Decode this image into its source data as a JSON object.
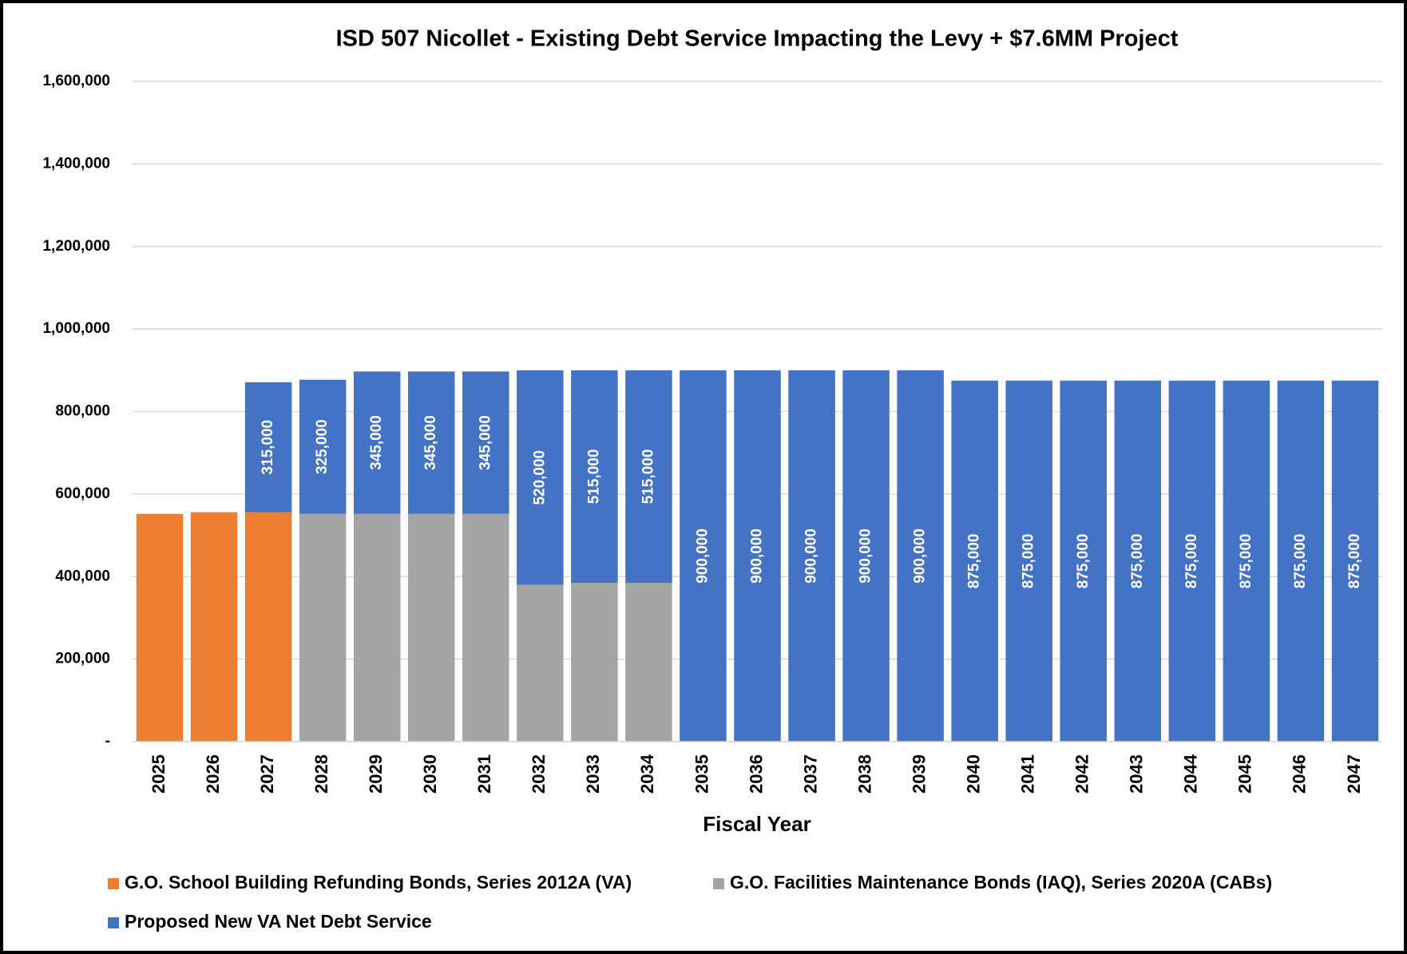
{
  "chart_data": {
    "type": "stacked_bar",
    "title": "ISD 507 Nicollet - Existing Debt Service Impacting the Levy +  $7.6MM Project",
    "x_label": "Fiscal Year",
    "categories": [
      "2025",
      "2026",
      "2027",
      "2028",
      "2029",
      "2030",
      "2031",
      "2032",
      "2033",
      "2034",
      "2035",
      "2036",
      "2037",
      "2038",
      "2039",
      "2040",
      "2041",
      "2042",
      "2043",
      "2044",
      "2045",
      "2046",
      "2047"
    ],
    "series": [
      {
        "name": "G.O. School Building Refunding Bonds, Series 2012A (VA)",
        "color": "#ed7d31",
        "values": [
          552000,
          556000,
          556000,
          null,
          null,
          null,
          null,
          null,
          null,
          null,
          null,
          null,
          null,
          null,
          null,
          null,
          null,
          null,
          null,
          null,
          null,
          null,
          null
        ]
      },
      {
        "name": "G.O. Facilities Maintenance Bonds (IAQ), Series 2020A (CABs)",
        "color": "#a5a5a5",
        "values": [
          null,
          null,
          null,
          552000,
          552000,
          552000,
          552000,
          380000,
          385000,
          385000,
          null,
          null,
          null,
          null,
          null,
          null,
          null,
          null,
          null,
          null,
          null,
          null,
          null
        ]
      },
      {
        "name": "Proposed New VA Net Debt Service",
        "color": "#4472c4",
        "values": [
          null,
          null,
          315000,
          325000,
          345000,
          345000,
          345000,
          520000,
          515000,
          515000,
          900000,
          900000,
          900000,
          900000,
          900000,
          875000,
          875000,
          875000,
          875000,
          875000,
          875000,
          875000,
          875000
        ],
        "value_labels": [
          null,
          null,
          "315,000",
          "325,000",
          "345,000",
          "345,000",
          "345,000",
          "520,000",
          "515,000",
          "515,000",
          "900,000",
          "900,000",
          "900,000",
          "900,000",
          "900,000",
          "875,000",
          "875,000",
          "875,000",
          "875,000",
          "875,000",
          "875,000",
          "875,000",
          "875,000"
        ]
      }
    ],
    "ylim": [
      0,
      1600000
    ],
    "yticks": [
      {
        "value": 0,
        "label": "-"
      },
      {
        "value": 200000,
        "label": "200,000"
      },
      {
        "value": 400000,
        "label": "400,000"
      },
      {
        "value": 600000,
        "label": "600,000"
      },
      {
        "value": 800000,
        "label": "800,000"
      },
      {
        "value": 1000000,
        "label": "1,000,000"
      },
      {
        "value": 1200000,
        "label": "1,200,000"
      },
      {
        "value": 1400000,
        "label": "1,400,000"
      },
      {
        "value": 1600000,
        "label": "1,600,000"
      }
    ],
    "grid": true,
    "legend": "bottom"
  }
}
